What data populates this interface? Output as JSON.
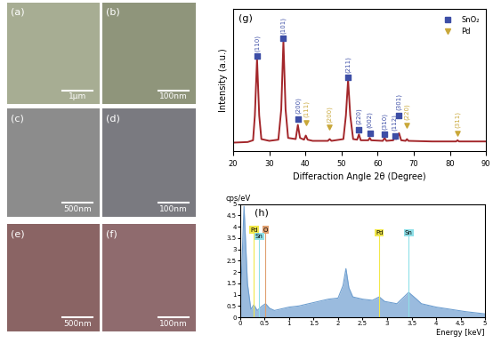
{
  "images": [
    {
      "label": "(a)",
      "scale_bar": "1μm",
      "color": "#a7ad93"
    },
    {
      "label": "(b)",
      "scale_bar": "100nm",
      "color": "#8f957b"
    },
    {
      "label": "(c)",
      "scale_bar": "500nm",
      "color": "#8c8c8c"
    },
    {
      "label": "(d)",
      "scale_bar": "100nm",
      "color": "#7a7a80"
    },
    {
      "label": "(e)",
      "scale_bar": "500nm",
      "color": "#8a6464"
    },
    {
      "label": "(f)",
      "scale_bar": "100nm",
      "color": "#8f6b6e"
    }
  ],
  "chart_data": [
    {
      "type": "line",
      "title": "(g)",
      "xlabel": "Differaction Angle 2θ (Degree)",
      "ylabel": "Intensity (a.u.)",
      "x": [
        20,
        24,
        25.5,
        26.0,
        26.6,
        27.2,
        27.8,
        30,
        32.5,
        33.3,
        33.9,
        34.5,
        35.2,
        37.3,
        37.9,
        38.5,
        39.6,
        40.1,
        40.6,
        42,
        46.2,
        46.7,
        47.2,
        50.5,
        51.2,
        51.8,
        52.4,
        53.2,
        54.3,
        54.8,
        55.3,
        57.4,
        57.8,
        58.2,
        61.4,
        61.9,
        62.4,
        64.3,
        64.7,
        65.1,
        65.9,
        66.5,
        67.7,
        68.1,
        68.5,
        75,
        81.7,
        82.1,
        82.5,
        90
      ],
      "values": [
        7,
        7.5,
        9,
        30,
        78,
        30,
        10,
        8.5,
        9.5,
        35,
        93,
        35,
        11,
        10,
        22,
        11,
        9.5,
        13,
        9.5,
        8.5,
        8.5,
        10,
        8.5,
        10,
        30,
        60,
        30,
        10,
        9.5,
        14,
        9,
        9,
        11,
        9,
        8.5,
        11,
        8.5,
        9,
        11,
        10,
        15,
        9,
        8.5,
        10,
        8.5,
        8,
        8,
        9,
        8,
        8
      ],
      "color": "#a3262a",
      "xlim": [
        20,
        90
      ],
      "xticks": [
        20,
        30,
        40,
        50,
        60,
        70,
        80,
        90
      ],
      "ylim": [
        0,
        120
      ],
      "yticks": [],
      "tick_labels": "x",
      "legend": "upper right",
      "series": [
        {
          "name": "SnO₂",
          "type": "scatter",
          "marker": "square",
          "color": "#3d4ea6",
          "x": [
            26.6,
            33.9,
            38.0,
            51.8,
            54.8,
            57.8,
            61.9,
            64.7,
            65.9
          ],
          "values": [
            80,
            95,
            27,
            62,
            18,
            15,
            14,
            13,
            30
          ],
          "labels": [
            "(110)",
            "(101)",
            "(200)",
            "(211)",
            "(220)",
            "(002)",
            "(310)",
            "(112)",
            "(301)"
          ]
        },
        {
          "name": "Pd",
          "type": "scatter",
          "marker": "triangle_down",
          "color": "#c9a83a",
          "x": [
            40.1,
            46.7,
            68.1,
            82.1
          ],
          "values": [
            24,
            20,
            22,
            15
          ],
          "labels": [
            "(111)",
            "(200)",
            "(220)",
            "(311)"
          ]
        }
      ]
    },
    {
      "type": "area",
      "title": "(h)",
      "xlabel": "Energy [keV]",
      "ylabel": "cps/eV",
      "x": [
        0.0,
        0.08,
        0.15,
        0.22,
        0.28,
        0.35,
        0.45,
        0.52,
        0.6,
        0.7,
        0.8,
        1.0,
        1.2,
        1.4,
        1.6,
        1.8,
        2.0,
        2.1,
        2.16,
        2.22,
        2.3,
        2.5,
        2.7,
        2.84,
        2.95,
        3.2,
        3.44,
        3.6,
        3.7,
        4.0,
        4.3,
        4.6,
        5.0
      ],
      "values": [
        0.2,
        4.9,
        1.5,
        0.35,
        0.55,
        0.3,
        0.5,
        0.6,
        0.4,
        0.3,
        0.35,
        0.45,
        0.5,
        0.6,
        0.7,
        0.8,
        0.85,
        1.4,
        2.15,
        1.3,
        0.9,
        0.8,
        0.75,
        0.9,
        0.7,
        0.6,
        1.1,
        0.8,
        0.6,
        0.45,
        0.35,
        0.25,
        0.15
      ],
      "color": "#6f9fd0",
      "xlim": [
        0,
        5
      ],
      "xticks": [
        0,
        0.5,
        1,
        1.5,
        2,
        2.5,
        3,
        3.5,
        4,
        4.5,
        5
      ],
      "ylim": [
        0,
        5
      ],
      "yticks": [
        0,
        0.5,
        1,
        1.5,
        2,
        2.5,
        3,
        3.5,
        4,
        4.5,
        5
      ],
      "annotations": [
        {
          "text": "Pd",
          "x": 0.28,
          "y": 3.75,
          "color": "#f2e84b"
        },
        {
          "text": "O",
          "x": 0.52,
          "y": 3.75,
          "color": "#e0a070"
        },
        {
          "text": "Sn",
          "x": 0.39,
          "y": 3.45,
          "color": "#8fe0e8"
        },
        {
          "text": "Pd",
          "x": 2.84,
          "y": 3.6,
          "color": "#f2e84b"
        },
        {
          "text": "Sn",
          "x": 3.44,
          "y": 3.6,
          "color": "#8fe0e8"
        }
      ]
    }
  ]
}
